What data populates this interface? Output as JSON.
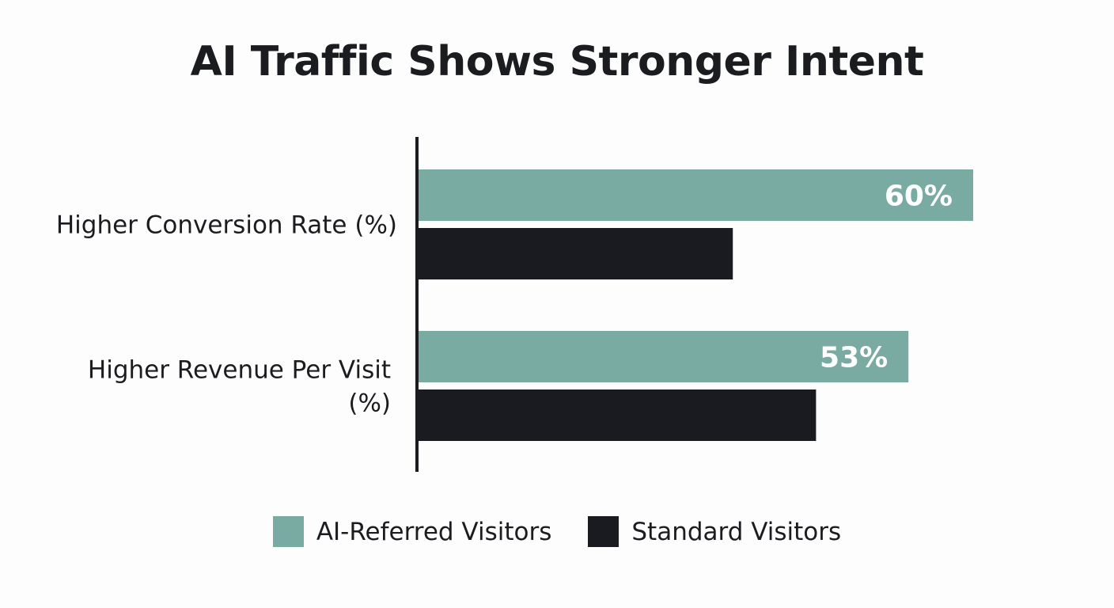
{
  "chart_data": {
    "type": "bar",
    "orientation": "horizontal",
    "title": "AI Traffic Shows Stronger Intent",
    "categories": [
      [
        "Higher Conversion Rate (%)"
      ],
      [
        "Higher Revenue Per Visit",
        "(%)"
      ]
    ],
    "series": [
      {
        "name": "AI-Referred Visitors",
        "color": "#79aba2",
        "values": [
          60,
          53
        ],
        "labels": [
          "60%",
          "53%"
        ]
      },
      {
        "name": "Standard Visitors",
        "color": "#1a1b20",
        "values": [
          34,
          43
        ],
        "labels": [
          "",
          ""
        ]
      }
    ],
    "xlim": [
      0,
      60
    ],
    "grid": false,
    "legend_position": "bottom-center"
  }
}
